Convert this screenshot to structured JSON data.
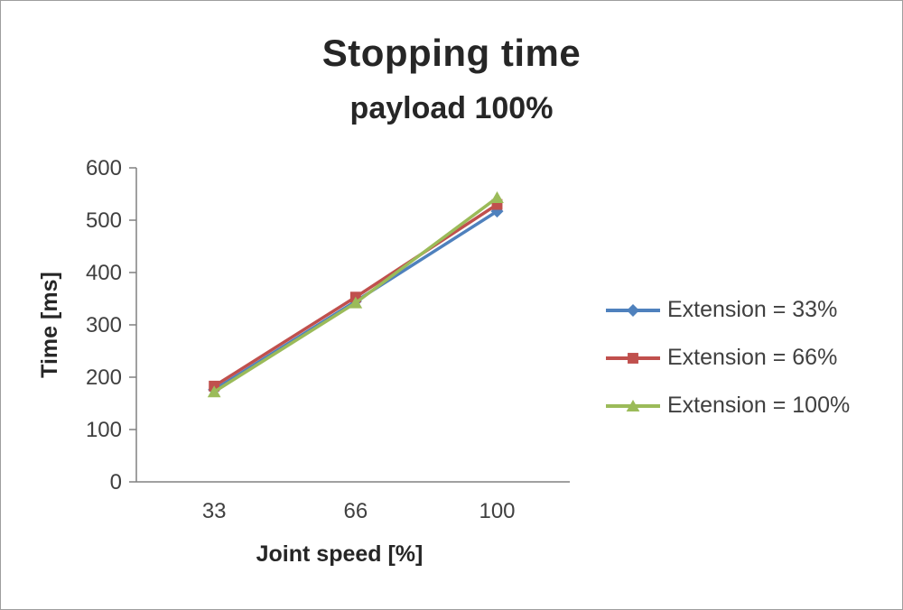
{
  "chart_data": {
    "type": "line",
    "title": "Stopping time",
    "subtitle": "payload 100%",
    "xlabel": "Joint speed [%]",
    "ylabel": "Time [ms]",
    "categories": [
      "33",
      "66",
      "100"
    ],
    "ylim": [
      0,
      600
    ],
    "ytick_step": 100,
    "grid": false,
    "legend_position": "right",
    "axis_color": "#808080",
    "text_color": "#404040",
    "series": [
      {
        "name": "Extension = 33%",
        "color": "#4F81BD",
        "marker": "diamond",
        "values": [
          176,
          345,
          517
        ]
      },
      {
        "name": "Extension = 66%",
        "color": "#C0504D",
        "marker": "square",
        "values": [
          183,
          353,
          530
        ]
      },
      {
        "name": "Extension = 100%",
        "color": "#9BBB59",
        "marker": "triangle",
        "values": [
          172,
          342,
          543
        ]
      }
    ]
  }
}
